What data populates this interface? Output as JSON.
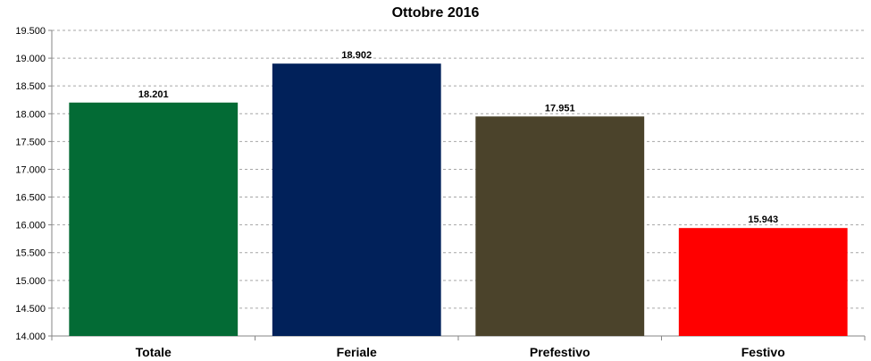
{
  "chart_data": {
    "type": "bar",
    "title": "Ottobre 2016",
    "xlabel": "",
    "ylabel": "",
    "categories": [
      "Totale",
      "Feriale",
      "Prefestivo",
      "Festivo"
    ],
    "values": [
      18201,
      18902,
      17951,
      15943
    ],
    "value_labels": [
      "18.201",
      "18.902",
      "17.951",
      "15.943"
    ],
    "colors": [
      "#036b35",
      "#01215a",
      "#4b432b",
      "#ff0000"
    ],
    "ylim": [
      14000,
      19500
    ],
    "yticks": [
      14000,
      14500,
      15000,
      15500,
      16000,
      16500,
      17000,
      17500,
      18000,
      18500,
      19000,
      19500
    ],
    "ytick_labels": [
      "14.000",
      "14.500",
      "15.000",
      "15.500",
      "16.000",
      "16.500",
      "17.000",
      "17.500",
      "18.000",
      "18.500",
      "19.000",
      "19.500"
    ],
    "grid": true,
    "legend": "none"
  }
}
